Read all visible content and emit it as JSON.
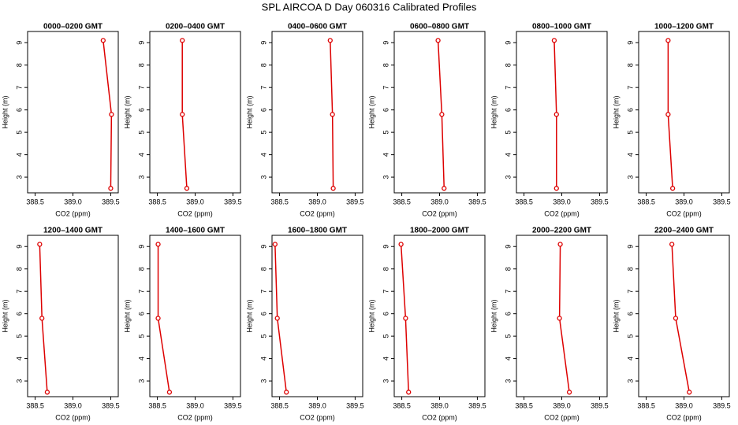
{
  "title": "SPL AIRCOA D  Day 060316  Calibrated Profiles",
  "chart_data": [
    {
      "type": "line",
      "title": "0000–0200 GMT",
      "x_label": "CO2 (ppm)",
      "y_label": "Height (m)",
      "x": [
        389.5,
        389.51,
        389.4
      ],
      "values": [
        2.5,
        5.8,
        9.1
      ],
      "color": "#dd0000",
      "xlim": [
        388.4,
        389.6
      ],
      "ylim": [
        2.3,
        9.5
      ],
      "xticks": [
        388.5,
        {
          "value": 389,
          "label": "389.0"
        },
        389.5
      ],
      "yticks": [
        3,
        4,
        5,
        6,
        7,
        8,
        9
      ]
    },
    {
      "type": "line",
      "title": "0200–0400 GMT",
      "x_label": "CO2 (ppm)",
      "y_label": "Height (m)",
      "x": [
        388.89,
        388.83,
        388.83
      ],
      "values": [
        2.5,
        5.8,
        9.1
      ],
      "color": "#dd0000",
      "xlim": [
        388.4,
        389.6
      ],
      "ylim": [
        2.3,
        9.5
      ],
      "xticks": [
        388.5,
        {
          "value": 389,
          "label": "389.0"
        },
        389.5
      ],
      "yticks": [
        3,
        4,
        5,
        6,
        7,
        8,
        9
      ]
    },
    {
      "type": "line",
      "title": "0400–0600 GMT",
      "x_label": "CO2 (ppm)",
      "y_label": "Height (m)",
      "x": [
        389.21,
        389.2,
        389.17
      ],
      "values": [
        2.5,
        5.8,
        9.1
      ],
      "color": "#dd0000",
      "xlim": [
        388.4,
        389.6
      ],
      "ylim": [
        2.3,
        9.5
      ],
      "xticks": [
        388.5,
        {
          "value": 389,
          "label": "389.0"
        },
        389.5
      ],
      "yticks": [
        3,
        4,
        5,
        6,
        7,
        8,
        9
      ]
    },
    {
      "type": "line",
      "title": "0600–0800 GMT",
      "x_label": "CO2 (ppm)",
      "y_label": "Height (m)",
      "x": [
        389.06,
        389.03,
        388.98
      ],
      "values": [
        2.5,
        5.8,
        9.1
      ],
      "color": "#dd0000",
      "xlim": [
        388.4,
        389.6
      ],
      "ylim": [
        2.3,
        9.5
      ],
      "xticks": [
        388.5,
        {
          "value": 389,
          "label": "389.0"
        },
        389.5
      ],
      "yticks": [
        3,
        4,
        5,
        6,
        7,
        8,
        9
      ]
    },
    {
      "type": "line",
      "title": "0800–1000 GMT",
      "x_label": "CO2 (ppm)",
      "y_label": "Height (m)",
      "x": [
        388.93,
        388.93,
        388.9
      ],
      "values": [
        2.5,
        5.8,
        9.1
      ],
      "color": "#dd0000",
      "xlim": [
        388.4,
        389.6
      ],
      "ylim": [
        2.3,
        9.5
      ],
      "xticks": [
        388.5,
        {
          "value": 389,
          "label": "389.0"
        },
        389.5
      ],
      "yticks": [
        3,
        4,
        5,
        6,
        7,
        8,
        9
      ]
    },
    {
      "type": "line",
      "title": "1000–1200 GMT",
      "x_label": "CO2 (ppm)",
      "y_label": "Height (m)",
      "x": [
        388.85,
        388.79,
        388.79
      ],
      "values": [
        2.5,
        5.8,
        9.1
      ],
      "color": "#dd0000",
      "xlim": [
        388.4,
        389.6
      ],
      "ylim": [
        2.3,
        9.5
      ],
      "xticks": [
        388.5,
        {
          "value": 389,
          "label": "389.0"
        },
        389.5
      ],
      "yticks": [
        3,
        4,
        5,
        6,
        7,
        8,
        9
      ]
    },
    {
      "type": "line",
      "title": "1200–1400 GMT",
      "x_label": "CO2 (ppm)",
      "y_label": "Height (m)",
      "x": [
        388.66,
        388.59,
        388.56
      ],
      "values": [
        2.5,
        5.8,
        9.1
      ],
      "color": "#dd0000",
      "xlim": [
        388.4,
        389.6
      ],
      "ylim": [
        2.3,
        9.5
      ],
      "xticks": [
        388.5,
        {
          "value": 389,
          "label": "389.0"
        },
        389.5
      ],
      "yticks": [
        3,
        4,
        5,
        6,
        7,
        8,
        9
      ]
    },
    {
      "type": "line",
      "title": "1400–1600 GMT",
      "x_label": "CO2 (ppm)",
      "y_label": "Height (m)",
      "x": [
        388.66,
        388.51,
        388.51
      ],
      "values": [
        2.5,
        5.8,
        9.1
      ],
      "color": "#dd0000",
      "xlim": [
        388.4,
        389.6
      ],
      "ylim": [
        2.3,
        9.5
      ],
      "xticks": [
        388.5,
        {
          "value": 389,
          "label": "389.0"
        },
        389.5
      ],
      "yticks": [
        3,
        4,
        5,
        6,
        7,
        8,
        9
      ]
    },
    {
      "type": "line",
      "title": "1600–1800 GMT",
      "x_label": "CO2 (ppm)",
      "y_label": "Height (m)",
      "x": [
        388.59,
        388.47,
        388.44
      ],
      "values": [
        2.5,
        5.8,
        9.1
      ],
      "color": "#dd0000",
      "xlim": [
        388.4,
        389.6
      ],
      "ylim": [
        2.3,
        9.5
      ],
      "xticks": [
        388.5,
        {
          "value": 389,
          "label": "389.0"
        },
        389.5
      ],
      "yticks": [
        3,
        4,
        5,
        6,
        7,
        8,
        9
      ]
    },
    {
      "type": "line",
      "title": "1800–2000 GMT",
      "x_label": "CO2 (ppm)",
      "y_label": "Height (m)",
      "x": [
        388.59,
        388.55,
        388.49
      ],
      "values": [
        2.5,
        5.8,
        9.1
      ],
      "color": "#dd0000",
      "xlim": [
        388.4,
        389.6
      ],
      "ylim": [
        2.3,
        9.5
      ],
      "xticks": [
        388.5,
        {
          "value": 389,
          "label": "389.0"
        },
        389.5
      ],
      "yticks": [
        3,
        4,
        5,
        6,
        7,
        8,
        9
      ]
    },
    {
      "type": "line",
      "title": "2000–2200 GMT",
      "x_label": "CO2 (ppm)",
      "y_label": "Height (m)",
      "x": [
        389.1,
        388.97,
        388.98
      ],
      "values": [
        2.5,
        5.8,
        9.1
      ],
      "color": "#dd0000",
      "xlim": [
        388.4,
        389.6
      ],
      "ylim": [
        2.3,
        9.5
      ],
      "xticks": [
        388.5,
        {
          "value": 389,
          "label": "389.0"
        },
        389.5
      ],
      "yticks": [
        3,
        4,
        5,
        6,
        7,
        8,
        9
      ]
    },
    {
      "type": "line",
      "title": "2200–2400 GMT",
      "x_label": "CO2 (ppm)",
      "y_label": "Height (m)",
      "x": [
        389.07,
        388.89,
        388.84
      ],
      "values": [
        2.5,
        5.8,
        9.1
      ],
      "color": "#dd0000",
      "xlim": [
        388.4,
        389.6
      ],
      "ylim": [
        2.3,
        9.5
      ],
      "xticks": [
        388.5,
        {
          "value": 389,
          "label": "389.0"
        },
        389.5
      ],
      "yticks": [
        3,
        4,
        5,
        6,
        7,
        8,
        9
      ]
    }
  ]
}
